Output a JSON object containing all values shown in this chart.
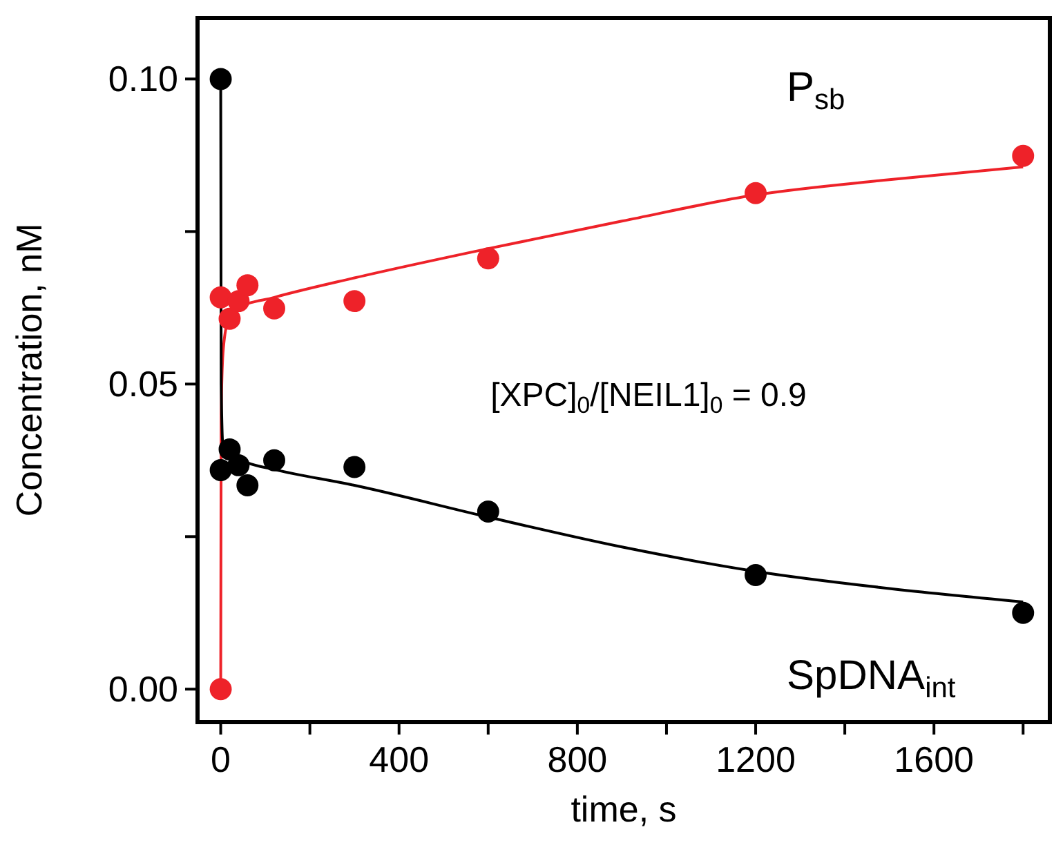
{
  "chart_data": {
    "type": "scatter",
    "xlabel": "time, s",
    "ylabel": "Concentration, nM",
    "xlim": [
      -52,
      1860
    ],
    "ylim": [
      -0.0054,
      0.11
    ],
    "xticks": [
      0,
      {
        "value": 200,
        "label": null
      },
      400,
      {
        "value": 600,
        "label": null
      },
      800,
      {
        "value": 1000,
        "label": null
      },
      1200,
      {
        "value": 1400,
        "label": null
      },
      1600,
      {
        "value": 1800,
        "label": null
      }
    ],
    "yticks": [
      {
        "value": 0,
        "label": "0.00"
      },
      {
        "value": 0.025,
        "label": null
      },
      {
        "value": 0.05,
        "label": "0.05"
      },
      {
        "value": 0.075,
        "label": null
      },
      {
        "value": 0.1,
        "label": "0.10"
      }
    ],
    "marker": "circle",
    "grid": false,
    "annotations": [
      "[XPC]$_{0}$/[NEIL1]$_{0}$ = 0.9"
    ],
    "series": [
      {
        "name": "P$_{sb}$",
        "color": "#ee2229",
        "x": [
          0,
          0,
          20,
          40,
          60,
          120,
          300,
          600,
          1200,
          1800
        ],
        "values": [
          0,
          0.0642,
          0.0607,
          0.0636,
          0.0662,
          0.0624,
          0.0636,
          0.0706,
          0.0813,
          0.0874
        ]
      },
      {
        "name": "SpDNA$_{int}$",
        "color": "#000000",
        "x": [
          0,
          0,
          20,
          40,
          60,
          120,
          300,
          600,
          1200,
          1800
        ],
        "values": [
          0.1,
          0.0359,
          0.0393,
          0.0367,
          0.0334,
          0.0375,
          0.0364,
          0.0291,
          0.0187,
          0.0125
        ]
      },
      {
        "type": "line",
        "color": "#ee2229",
        "marker": "none",
        "x": [
          0,
          1,
          5,
          15,
          40,
          120,
          300,
          600,
          900,
          1200,
          1500,
          1800
        ],
        "values": [
          0,
          0.045,
          0.055,
          0.06,
          0.0625,
          0.0642,
          0.0674,
          0.0722,
          0.0767,
          0.081,
          0.0835,
          0.0856
        ]
      },
      {
        "type": "line",
        "color": "#000000",
        "marker": "none",
        "x": [
          0,
          1,
          5,
          20,
          60,
          120,
          300,
          600,
          900,
          1200,
          1500,
          1800
        ],
        "values": [
          0.1,
          0.05,
          0.04,
          0.0385,
          0.0371,
          0.036,
          0.0334,
          0.0282,
          0.0233,
          0.0193,
          0.0165,
          0.0143
        ]
      }
    ]
  }
}
